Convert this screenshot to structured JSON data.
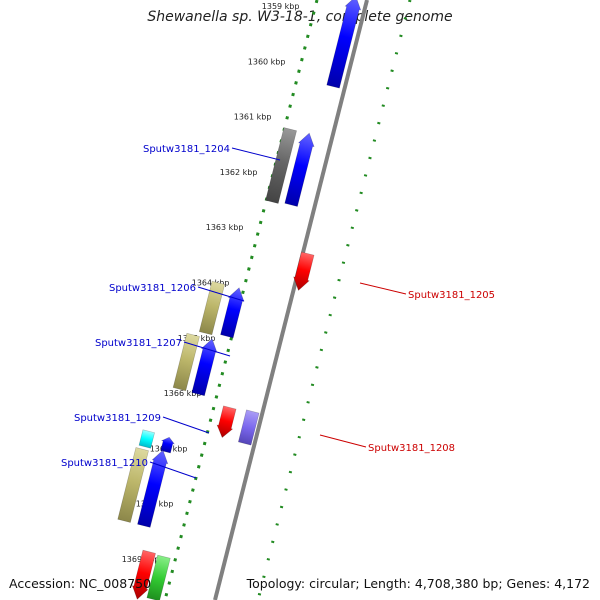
{
  "title": "Shewanella sp. W3-18-1, complete genome",
  "footer": {
    "accession": "Accession: NC_008750",
    "topology": "Topology: circular; Length: 4,708,380 bp; Genes: 4,172"
  },
  "kbp_ticks": [
    "1359 kbp",
    "1360 kbp",
    "1361 kbp",
    "1362 kbp",
    "1363 kbp",
    "1364 kbp",
    "1365 kbp",
    "1366 kbp",
    "1367 kbp",
    "1368 kbp",
    "1369 kbp"
  ],
  "labeled_genes": [
    {
      "name": "Sputw3181_1204",
      "strand": "forward",
      "color": "#0000cc"
    },
    {
      "name": "Sputw3181_1205",
      "strand": "reverse",
      "color": "#cc0000"
    },
    {
      "name": "Sputw3181_1206",
      "strand": "forward",
      "color": "#0000cc"
    },
    {
      "name": "Sputw3181_1207",
      "strand": "forward",
      "color": "#0000cc"
    },
    {
      "name": "Sputw3181_1208",
      "strand": "reverse",
      "color": "#cc0000"
    },
    {
      "name": "Sputw3181_1209",
      "strand": "forward",
      "color": "#0000cc"
    },
    {
      "name": "Sputw3181_1210",
      "strand": "forward",
      "color": "#0000cc"
    }
  ],
  "colors": {
    "cds_forward": "#0000ff",
    "cds_reverse": "#ff0000",
    "tan_feature": "#bdb76b",
    "gray_feature": "#666666",
    "cyan_feature": "#00ffff",
    "lavender_feature": "#7b68ee",
    "green_feature": "#33cc33",
    "backbone": "#808080",
    "dotted_ring": "#228b22"
  }
}
